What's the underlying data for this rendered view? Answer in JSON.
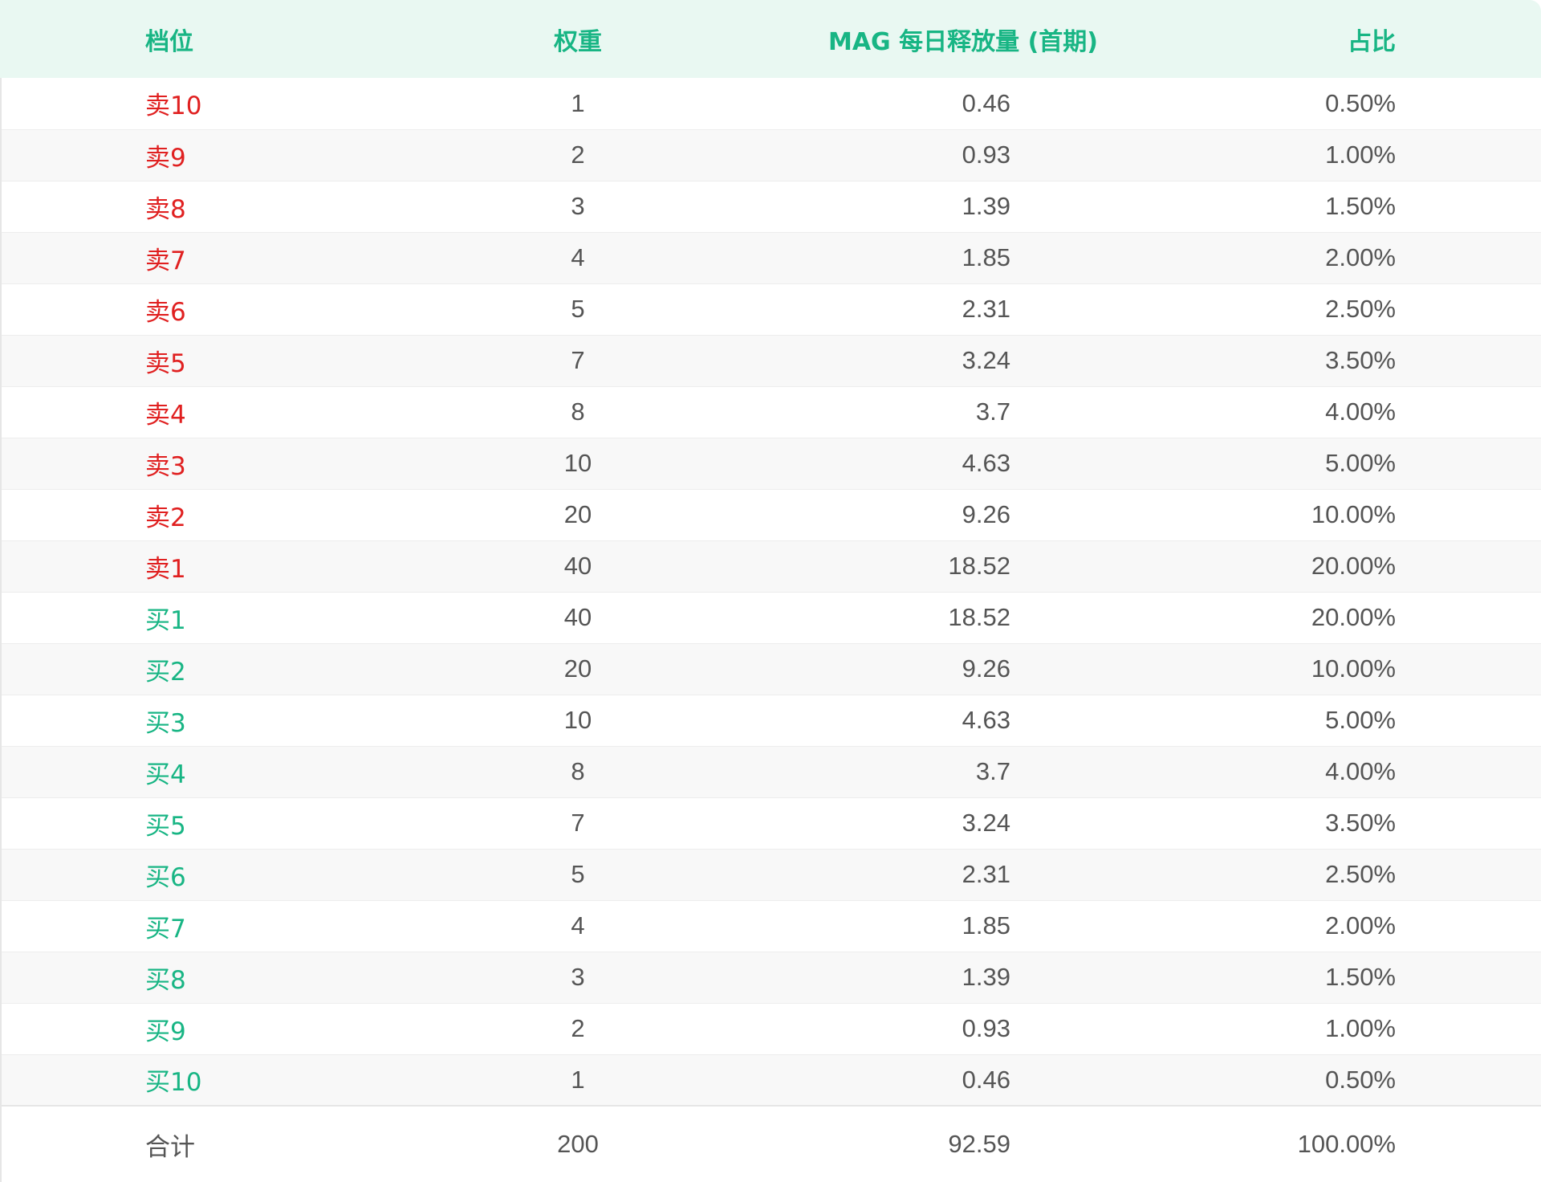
{
  "header": {
    "col_level": "档位",
    "col_weight": "权重",
    "col_release": "MAG 每日释放量 (首期)",
    "col_share": "占比"
  },
  "colors": {
    "sell": "#e02020",
    "buy": "#18b584",
    "header_bg": "#e9f8f2"
  },
  "rows": [
    {
      "side": "sell",
      "level": "卖10",
      "weight": "1",
      "release": "0.46",
      "share": "0.50%"
    },
    {
      "side": "sell",
      "level": "卖9",
      "weight": "2",
      "release": "0.93",
      "share": "1.00%"
    },
    {
      "side": "sell",
      "level": "卖8",
      "weight": "3",
      "release": "1.39",
      "share": "1.50%"
    },
    {
      "side": "sell",
      "level": "卖7",
      "weight": "4",
      "release": "1.85",
      "share": "2.00%"
    },
    {
      "side": "sell",
      "level": "卖6",
      "weight": "5",
      "release": "2.31",
      "share": "2.50%"
    },
    {
      "side": "sell",
      "level": "卖5",
      "weight": "7",
      "release": "3.24",
      "share": "3.50%"
    },
    {
      "side": "sell",
      "level": "卖4",
      "weight": "8",
      "release": "3.7",
      "share": "4.00%"
    },
    {
      "side": "sell",
      "level": "卖3",
      "weight": "10",
      "release": "4.63",
      "share": "5.00%"
    },
    {
      "side": "sell",
      "level": "卖2",
      "weight": "20",
      "release": "9.26",
      "share": "10.00%"
    },
    {
      "side": "sell",
      "level": "卖1",
      "weight": "40",
      "release": "18.52",
      "share": "20.00%"
    },
    {
      "side": "buy",
      "level": "买1",
      "weight": "40",
      "release": "18.52",
      "share": "20.00%"
    },
    {
      "side": "buy",
      "level": "买2",
      "weight": "20",
      "release": "9.26",
      "share": "10.00%"
    },
    {
      "side": "buy",
      "level": "买3",
      "weight": "10",
      "release": "4.63",
      "share": "5.00%"
    },
    {
      "side": "buy",
      "level": "买4",
      "weight": "8",
      "release": "3.7",
      "share": "4.00%"
    },
    {
      "side": "buy",
      "level": "买5",
      "weight": "7",
      "release": "3.24",
      "share": "3.50%"
    },
    {
      "side": "buy",
      "level": "买6",
      "weight": "5",
      "release": "2.31",
      "share": "2.50%"
    },
    {
      "side": "buy",
      "level": "买7",
      "weight": "4",
      "release": "1.85",
      "share": "2.00%"
    },
    {
      "side": "buy",
      "level": "买8",
      "weight": "3",
      "release": "1.39",
      "share": "1.50%"
    },
    {
      "side": "buy",
      "level": "买9",
      "weight": "2",
      "release": "0.93",
      "share": "1.00%"
    },
    {
      "side": "buy",
      "level": "买10",
      "weight": "1",
      "release": "0.46",
      "share": "0.50%"
    }
  ],
  "total": {
    "label": "合计",
    "weight": "200",
    "release": "92.59",
    "share": "100.00%"
  }
}
